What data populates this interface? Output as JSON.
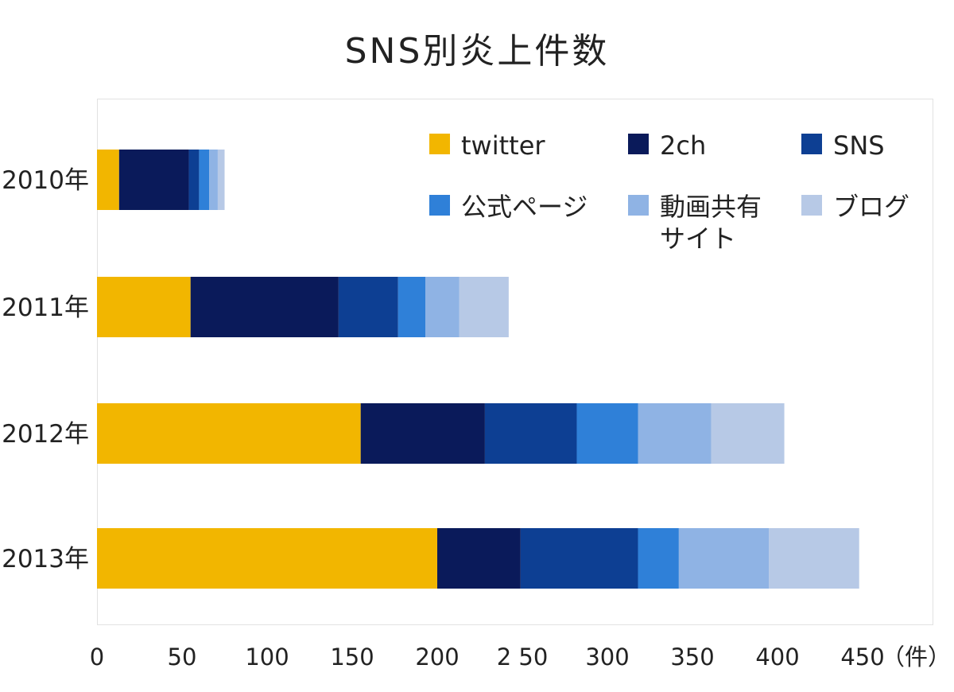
{
  "chart_data": {
    "type": "bar",
    "orientation": "horizontal",
    "stacked": true,
    "title": "SNS別炎上件数",
    "xlabel": "",
    "ylabel": "",
    "unit_label": "（件）",
    "xlim": [
      0,
      450
    ],
    "x_ticks": [
      0,
      50,
      100,
      150,
      200,
      250,
      300,
      350,
      400,
      450
    ],
    "x_tick_labels": [
      "0",
      "50",
      "100",
      "150",
      "200",
      "2 50",
      "300",
      "350",
      "400",
      "450"
    ],
    "categories": [
      "2010年",
      "2011年",
      "2012年",
      "2013年"
    ],
    "series": [
      {
        "name": "twitter",
        "color": "#f2b600",
        "values": [
          13,
          55,
          155,
          200
        ]
      },
      {
        "name": "2ch",
        "color": "#0a1a5a",
        "values": [
          41,
          87,
          73,
          49
        ]
      },
      {
        "name": "SNS",
        "color": "#0d3f93",
        "values": [
          6,
          35,
          54,
          69
        ]
      },
      {
        "name": "公式ページ",
        "color": "#2f80d8",
        "values": [
          6,
          16,
          36,
          24
        ]
      },
      {
        "name": "動画共有サイト",
        "color": "#8fb3e4",
        "values": [
          5,
          20,
          43,
          53
        ]
      },
      {
        "name": "ブログ",
        "color": "#b7c9e6",
        "values": [
          4,
          29,
          43,
          53
        ]
      }
    ],
    "legend_position": "top-right",
    "legend_labels": [
      "twitter",
      "2ch",
      "SNS",
      "公式ページ",
      "動画共有\nサイト",
      "ブログ"
    ],
    "grid": false
  }
}
